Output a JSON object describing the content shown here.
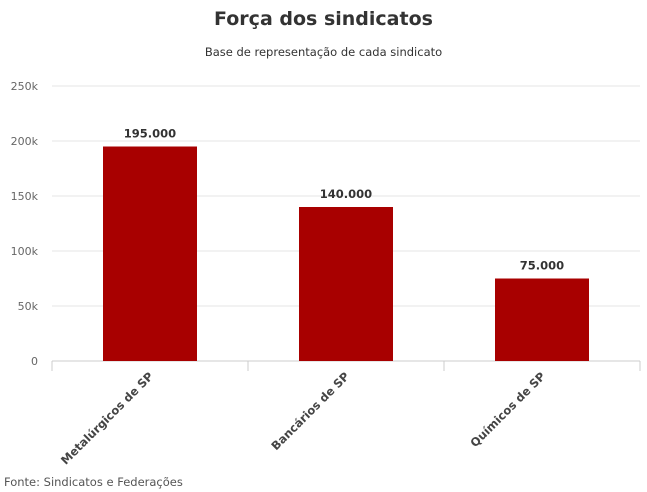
{
  "chart_data": {
    "type": "bar",
    "title": "Força dos sindicatos",
    "subtitle": "Base de representação de cada sindicato",
    "categories": [
      "Metalúrgicos de SP",
      "Bancários de SP",
      "Químicos de SP"
    ],
    "values": [
      195000,
      140000,
      75000
    ],
    "data_labels": [
      "195.000",
      "140.000",
      "75.000"
    ],
    "yticks": [
      0,
      50000,
      100000,
      150000,
      200000,
      250000
    ],
    "ytick_labels": [
      "0",
      "50k",
      "100k",
      "150k",
      "200k",
      "250k"
    ],
    "ylim": [
      0,
      250000
    ],
    "xlabel": "",
    "ylabel": "",
    "grid": true,
    "bar_color": "#a80000",
    "grid_color": "#e6e6e6"
  },
  "source": "Fonte: Sindicatos e Federações"
}
